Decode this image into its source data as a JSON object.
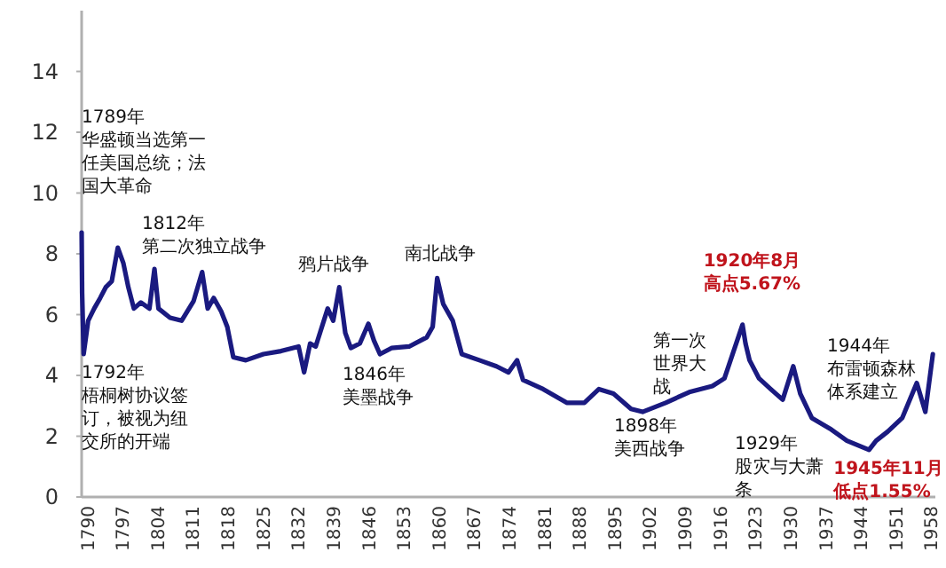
{
  "chart_data": {
    "type": "line",
    "xlim": [
      1789,
      1959
    ],
    "ylim": [
      0,
      16
    ],
    "xticks": [
      1790,
      1797,
      1804,
      1811,
      1818,
      1825,
      1832,
      1839,
      1846,
      1853,
      1860,
      1867,
      1874,
      1881,
      1888,
      1895,
      1902,
      1909,
      1916,
      1923,
      1930,
      1937,
      1944,
      1951,
      1958
    ],
    "yticks": [
      0,
      2,
      4,
      6,
      8,
      10,
      12,
      14
    ],
    "series": [
      {
        "color": "#1a1a80",
        "x": [
          1789,
          1789.1,
          1789.4,
          1790.3,
          1791.5,
          1792.7,
          1793.8,
          1795,
          1796.2,
          1797.3,
          1798.3,
          1799.4,
          1800.8,
          1802.5,
          1803.5,
          1804.3,
          1806.6,
          1808.9,
          1811.3,
          1813,
          1814.1,
          1815.3,
          1816.8,
          1818,
          1819.2,
          1821.7,
          1825.2,
          1828.7,
          1832.2,
          1833.3,
          1834.5,
          1835.6,
          1838,
          1839.1,
          1840.3,
          1841.5,
          1842.6,
          1844.4,
          1846.1,
          1847.2,
          1848.4,
          1850.7,
          1854.2,
          1857.7,
          1858.9,
          1859.8,
          1861,
          1862.9,
          1864.7,
          1868.2,
          1871.6,
          1874,
          1875.7,
          1876.9,
          1880.9,
          1885.6,
          1889.1,
          1892,
          1894.9,
          1898.4,
          1900.7,
          1905.3,
          1910,
          1914.6,
          1917,
          1920.6,
          1921.2,
          1922,
          1923.9,
          1926.2,
          1928.6,
          1930.7,
          1932.1,
          1934.4,
          1938,
          1941.4,
          1945.8,
          1947.2,
          1949.5,
          1952.4,
          1955.3,
          1957,
          1958.5
        ],
        "values": [
          8.7,
          6.7,
          4.7,
          5.8,
          6.2,
          6.55,
          6.9,
          7.1,
          8.2,
          7.7,
          6.9,
          6.2,
          6.4,
          6.2,
          7.5,
          6.2,
          5.9,
          5.8,
          6.45,
          7.4,
          6.2,
          6.55,
          6.1,
          5.6,
          4.6,
          4.5,
          4.7,
          4.8,
          4.95,
          4.1,
          5.05,
          4.95,
          6.2,
          5.8,
          6.9,
          5.4,
          4.9,
          5.05,
          5.7,
          5.15,
          4.7,
          4.9,
          4.95,
          5.25,
          5.6,
          7.2,
          6.35,
          5.8,
          4.7,
          4.5,
          4.3,
          4.1,
          4.5,
          3.85,
          3.55,
          3.1,
          3.1,
          3.55,
          3.4,
          2.9,
          2.8,
          3.1,
          3.45,
          3.65,
          3.9,
          5.67,
          5.05,
          4.5,
          3.9,
          3.55,
          3.2,
          4.3,
          3.4,
          2.6,
          2.25,
          1.85,
          1.55,
          1.85,
          2.15,
          2.6,
          3.75,
          2.8,
          4.7
        ]
      }
    ],
    "annotations": [
      "1789年华盛顿当选第一任美国总统；法国大革命",
      "1792年梧桐树协议签订，被视为纽交所的开端",
      "1812年第二次独立战争",
      "鸦片战争",
      "1846年美墨战争",
      "南北战争",
      "1898年美西战争",
      "第一次世界大战",
      {
        "text": "1920年8月高点5.67%",
        "x": 1920.6,
        "y": 5.67
      },
      "1929年股灾与大萧条",
      "1944年布雷顿森林体系建立",
      {
        "text": "1945年11月低点1.55%",
        "x": 1945.8,
        "y": 1.55
      }
    ]
  }
}
